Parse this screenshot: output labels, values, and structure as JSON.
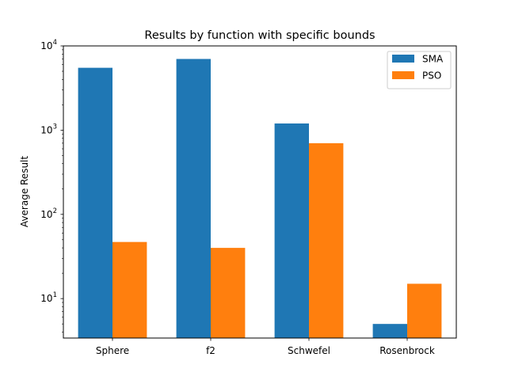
{
  "chart_data": {
    "type": "bar",
    "title": "Results by function with specific bounds",
    "xlabel": "",
    "ylabel": "Average Result",
    "yscale": "log",
    "ylim": [
      3.4,
      10000
    ],
    "categories": [
      "Sphere",
      "f2",
      "Schwefel",
      "Rosenbrock"
    ],
    "series": [
      {
        "name": "SMA",
        "color": "#1f77b4",
        "values": [
          5500,
          7000,
          1200,
          5
        ]
      },
      {
        "name": "PSO",
        "color": "#ff7f0e",
        "values": [
          47,
          40,
          700,
          15
        ]
      }
    ],
    "yticks": [
      {
        "value": 10,
        "base": "10",
        "exp": "1"
      },
      {
        "value": 100,
        "base": "10",
        "exp": "2"
      },
      {
        "value": 1000,
        "base": "10",
        "exp": "3"
      },
      {
        "value": 10000,
        "base": "10",
        "exp": "4"
      }
    ],
    "legend": "top-right",
    "grid": false
  }
}
